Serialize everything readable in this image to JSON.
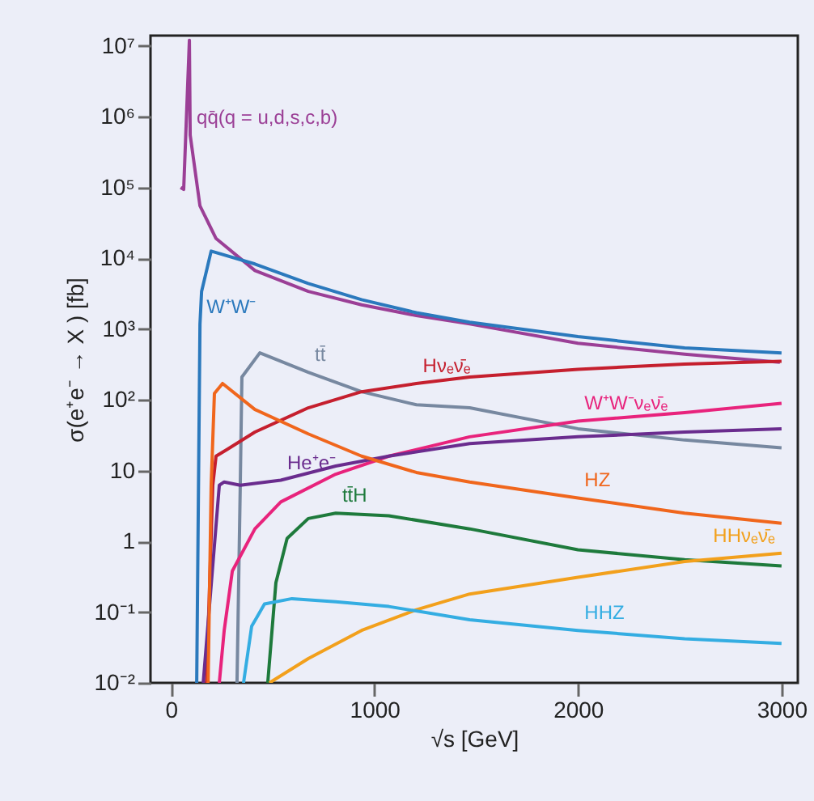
{
  "chart_data": {
    "type": "line",
    "xlabel": "√s [GeV]",
    "ylabel": "σ(e⁺e⁻ → X ) [fb]",
    "log": "y",
    "grid": false,
    "legend": false,
    "line_style": "solid",
    "marker": "none",
    "xlim": [
      -100,
      3080
    ],
    "xticks": [
      0,
      1000,
      2000,
      3000
    ],
    "ylim": [
      0.01,
      14000000
    ],
    "yticks": [
      {
        "value": 0.01,
        "label": "10⁻²"
      },
      {
        "value": 0.1,
        "label": "10⁻¹"
      },
      1,
      10,
      {
        "value": 100,
        "label": "10²"
      },
      {
        "value": 1000,
        "label": "10³"
      },
      {
        "value": 10000,
        "label": "10⁴"
      },
      {
        "value": 100000,
        "label": "10⁵"
      },
      {
        "value": 1000000,
        "label": "10⁶"
      },
      {
        "value": 10000000,
        "label": "10⁷"
      }
    ],
    "series": [
      {
        "color": "#9b3f96",
        "x": [
          48,
          63,
          91,
          95,
          143,
          222,
          413,
          675,
          937,
          1206,
          1468,
          2000,
          2524,
          2992
        ],
        "values": [
          100000,
          94000,
          12000000,
          550000,
          55000,
          19000,
          6700,
          3400,
          2200,
          1550,
          1180,
          630,
          440,
          340
        ]
      },
      {
        "color": "#2b79bd",
        "x": [
          127,
          143,
          151,
          198,
          413,
          675,
          937,
          1206,
          1468,
          2000,
          2524,
          3000
        ],
        "values": [
          0.01,
          1170,
          3400,
          12600,
          8300,
          4400,
          2600,
          1700,
          1250,
          780,
          540,
          460
        ]
      },
      {
        "color": "#7788a0",
        "x": [
          325,
          341,
          349,
          437,
          675,
          937,
          1206,
          1468,
          2000,
          2524,
          3000
        ],
        "values": [
          0.01,
          6.2,
          210,
          460,
          245,
          130,
          85,
          77,
          39,
          27,
          21
        ]
      },
      {
        "color": "#c51f2e",
        "x": [
          175,
          206,
          222,
          278,
          413,
          675,
          937,
          1206,
          1468,
          2000,
          2524,
          3000
        ],
        "values": [
          0.01,
          6.2,
          16,
          20,
          35,
          77,
          130,
          170,
          210,
          270,
          320,
          350
        ]
      },
      {
        "color": "#1e7a3c",
        "x": [
          476,
          516,
          571,
          675,
          810,
          1071,
          1468,
          2000,
          2524,
          3000
        ],
        "values": [
          0.01,
          0.26,
          1.1,
          2.1,
          2.5,
          2.3,
          1.5,
          0.76,
          0.55,
          0.45
        ]
      },
      {
        "color": "#f2a01c",
        "x": [
          484,
          675,
          937,
          1206,
          1468,
          2000,
          2524,
          3000
        ],
        "values": [
          0.01,
          0.022,
          0.055,
          0.108,
          0.18,
          0.31,
          0.52,
          0.68
        ]
      },
      {
        "color": "#e8237c",
        "x": [
          238,
          262,
          302,
          413,
          540,
          810,
          1071,
          1468,
          2000,
          2524,
          3000
        ],
        "values": [
          0.01,
          0.055,
          0.38,
          1.5,
          3.6,
          8.9,
          16,
          30,
          50,
          66,
          89
        ]
      },
      {
        "color": "#6a2c8e",
        "x": [
          159,
          238,
          262,
          341,
          540,
          810,
          1071,
          1468,
          2000,
          2524,
          3000
        ],
        "values": [
          0.01,
          6.2,
          6.9,
          6.2,
          7.3,
          11.6,
          16,
          24,
          30,
          35,
          39
        ]
      },
      {
        "color": "#f0661c",
        "x": [
          183,
          198,
          214,
          254,
          413,
          675,
          937,
          1206,
          1468,
          2000,
          2524,
          3000
        ],
        "values": [
          0.01,
          6.2,
          123,
          170,
          73,
          33,
          16,
          9.4,
          6.9,
          4.1,
          2.5,
          1.8
        ]
      },
      {
        "color": "#34ade2",
        "x": [
          357,
          397,
          460,
          595,
          810,
          1071,
          1468,
          2000,
          2524,
          3000
        ],
        "values": [
          0.01,
          0.063,
          0.13,
          0.155,
          0.14,
          0.12,
          0.078,
          0.055,
          0.042,
          0.036
        ]
      }
    ],
    "annotations": [
      {
        "text": "qq̄(q = u,d,s,c,b)",
        "x": 95,
        "y": 550000
      },
      {
        "text": "W⁺W⁻",
        "x": 143,
        "y": 1170
      },
      {
        "text": "tt̄",
        "x": 675,
        "y": 245
      },
      {
        "text": "Hνₑν̄ₑ",
        "x": 1206,
        "y": 170
      },
      {
        "text": "tt̄H",
        "x": 810,
        "y": 2.5
      },
      {
        "text": "HHνₑν̄ₑ",
        "x": 3000,
        "y": 0.68
      },
      {
        "text": "W⁺W⁻νₑν̄ₑ",
        "x": 2000,
        "y": 50
      },
      {
        "text": "He⁺e⁻",
        "x": 540,
        "y": 7.3
      },
      {
        "text": "HZ",
        "x": 2000,
        "y": 4.1
      },
      {
        "text": "HHZ",
        "x": 2000,
        "y": 0.055
      }
    ]
  }
}
